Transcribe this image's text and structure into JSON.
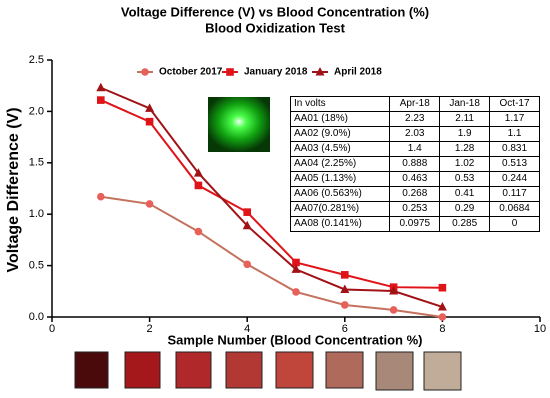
{
  "chart_data": {
    "type": "line",
    "title": "Voltage Difference (V) vs Blood Concentration (%)",
    "subtitle": "Blood Oxidization Test",
    "x_label": "Sample Number (Blood Concentration %)",
    "y_label": "Voltage Difference (V)",
    "x": [
      1,
      2,
      3,
      4,
      5,
      6,
      7,
      8
    ],
    "series": [
      {
        "name": "October 2017",
        "color": "#e8605a",
        "line_color": "#c4725e",
        "marker": "circle",
        "values": [
          1.17,
          1.1,
          0.831,
          0.513,
          0.244,
          0.117,
          0.0684,
          0
        ]
      },
      {
        "name": "January 2018",
        "color": "#e01418",
        "line_color": "#e01418",
        "marker": "square",
        "values": [
          2.11,
          1.9,
          1.28,
          1.02,
          0.53,
          0.41,
          0.29,
          0.285
        ]
      },
      {
        "name": "April 2018",
        "color": "#a01216",
        "line_color": "#a01216",
        "marker": "triangle",
        "values": [
          2.23,
          2.03,
          1.4,
          0.888,
          0.463,
          0.268,
          0.253,
          0.0975
        ]
      }
    ],
    "xlim": [
      0,
      10
    ],
    "xticks": [
      0,
      2,
      4,
      6,
      8,
      10
    ],
    "ylim": [
      0,
      2.5
    ],
    "yticks": [
      {
        "value": 0,
        "label": "0.0"
      },
      0.5,
      {
        "value": 1,
        "label": "1.0"
      },
      1.5,
      {
        "value": 2,
        "label": "2.0"
      },
      2.5
    ],
    "grid": false,
    "legend": "top",
    "table": {
      "header": [
        "In volts",
        "Apr-18",
        "Jan-18",
        "Oct-17"
      ],
      "row_labels": [
        "AA01 (18%)",
        "AA02 (9.0%)",
        "AA03 (4.5%)",
        "AA04 (2.25%)",
        "AA05 (1.13%)",
        "AA06 (0.563%)",
        "AA07(0.281%)",
        "AA08 (0.141%)"
      ],
      "column_series": [
        2,
        1,
        0
      ]
    }
  }
}
